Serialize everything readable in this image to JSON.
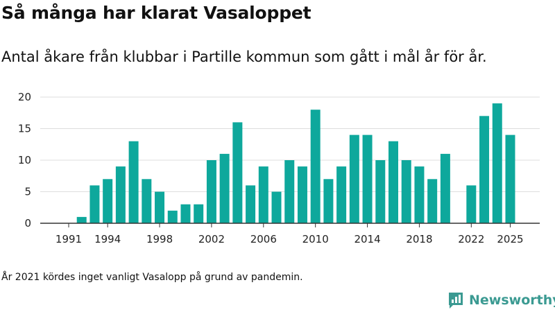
{
  "title": "Så många har klarat Vasaloppet",
  "subtitle": "Antal åkare från klubbar i Partille kommun som gått i mål år för år.",
  "footnote": "År 2021 kördes inget vanligt Vasalopp på grund av pandemin.",
  "brand": {
    "name": "Newsworthy",
    "icon": "newsworthy-logo-icon",
    "color": "#3b9a92"
  },
  "colors": {
    "bar": "#0ea89c",
    "grid": "#dddddd",
    "axis": "#333333"
  },
  "chart_data": {
    "type": "bar",
    "title": "Så många har klarat Vasaloppet",
    "xlabel": "",
    "ylabel": "",
    "ylim": [
      0,
      20
    ],
    "yticks": [
      0,
      5,
      10,
      15,
      20
    ],
    "xticks": [
      1991,
      1994,
      1998,
      2002,
      2006,
      2010,
      2014,
      2018,
      2022,
      2025
    ],
    "grid": true,
    "categories": [
      1991,
      1992,
      1993,
      1994,
      1995,
      1996,
      1997,
      1998,
      1999,
      2000,
      2001,
      2002,
      2003,
      2004,
      2005,
      2006,
      2007,
      2008,
      2009,
      2010,
      2011,
      2012,
      2013,
      2014,
      2015,
      2016,
      2017,
      2018,
      2019,
      2020,
      2021,
      2022,
      2023,
      2024,
      2025
    ],
    "values": [
      0,
      1,
      6,
      7,
      9,
      13,
      7,
      5,
      2,
      3,
      3,
      10,
      11,
      16,
      6,
      9,
      5,
      10,
      9,
      18,
      7,
      9,
      14,
      14,
      10,
      13,
      10,
      9,
      7,
      11,
      null,
      6,
      17,
      19,
      14
    ]
  }
}
